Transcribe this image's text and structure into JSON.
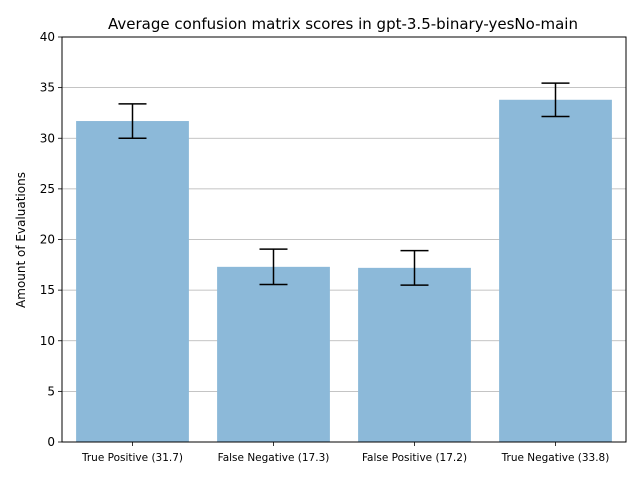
{
  "chart_data": {
    "type": "bar",
    "title": "Average confusion matrix scores in gpt-3.5-binary-yesNo-main",
    "xlabel": "",
    "ylabel": "Amount of Evaluations",
    "categories": [
      "True Positive (31.7)",
      "False Negative (17.3)",
      "False Positive (17.2)",
      "True Negative (33.8)"
    ],
    "values": [
      31.7,
      17.3,
      17.2,
      33.8
    ],
    "error": [
      1.7,
      1.75,
      1.7,
      1.65
    ],
    "ylim": [
      0,
      40
    ],
    "yticks": [
      0,
      5,
      10,
      15,
      20,
      25,
      30,
      35,
      40
    ],
    "grid": "y",
    "bar_color": "#8cb9d9",
    "error_color": "#000000"
  }
}
